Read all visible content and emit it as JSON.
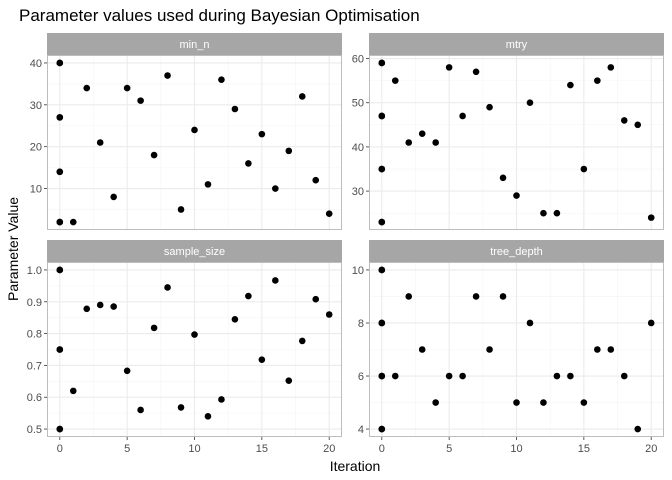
{
  "chart_data": {
    "type": "scatter",
    "title": "Parameter values used during Bayesian Optimisation",
    "xlabel": "Iteration",
    "ylabel": "Parameter Value",
    "grid": true,
    "colors": {
      "point": "#000000",
      "strip": "#a6a6a6",
      "grid_major": "#ebebeb",
      "grid_minor": "#f5f5f5",
      "border": "#bdbdbd"
    },
    "x_ticks": [
      0,
      5,
      10,
      15,
      20
    ],
    "panels": [
      {
        "name": "min_n",
        "xlim": [
          -0.95,
          20.95
        ],
        "ylim": [
          0.1,
          41.9
        ],
        "y_ticks": [
          10,
          20,
          30,
          40
        ],
        "points": [
          [
            0,
            40
          ],
          [
            0,
            40
          ],
          [
            0,
            27
          ],
          [
            0,
            27
          ],
          [
            0,
            14
          ],
          [
            0,
            14
          ],
          [
            0,
            2
          ],
          [
            0,
            2
          ],
          [
            1,
            2
          ],
          [
            2,
            34
          ],
          [
            3,
            21
          ],
          [
            4,
            8
          ],
          [
            5,
            34
          ],
          [
            6,
            31
          ],
          [
            7,
            18
          ],
          [
            8,
            37
          ],
          [
            9,
            5
          ],
          [
            10,
            24
          ],
          [
            11,
            11
          ],
          [
            12,
            36
          ],
          [
            13,
            29
          ],
          [
            14,
            16
          ],
          [
            15,
            23
          ],
          [
            16,
            10
          ],
          [
            17,
            19
          ],
          [
            18,
            32
          ],
          [
            19,
            12
          ],
          [
            20,
            4
          ]
        ]
      },
      {
        "name": "mtry",
        "xlim": [
          -0.95,
          20.95
        ],
        "ylim": [
          21.2,
          60.8
        ],
        "y_ticks": [
          30,
          40,
          50,
          60
        ],
        "points": [
          [
            0,
            59
          ],
          [
            0,
            59
          ],
          [
            0,
            47
          ],
          [
            0,
            47
          ],
          [
            0,
            35
          ],
          [
            0,
            35
          ],
          [
            0,
            23
          ],
          [
            0,
            23
          ],
          [
            1,
            55
          ],
          [
            2,
            41
          ],
          [
            3,
            43
          ],
          [
            4,
            41
          ],
          [
            5,
            58
          ],
          [
            6,
            47
          ],
          [
            7,
            57
          ],
          [
            8,
            49
          ],
          [
            9,
            33
          ],
          [
            10,
            29
          ],
          [
            11,
            50
          ],
          [
            12,
            25
          ],
          [
            13,
            25
          ],
          [
            14,
            54
          ],
          [
            15,
            35
          ],
          [
            16,
            55
          ],
          [
            17,
            58
          ],
          [
            18,
            46
          ],
          [
            19,
            45
          ],
          [
            20,
            24
          ]
        ]
      },
      {
        "name": "sample_size",
        "xlim": [
          -0.95,
          20.95
        ],
        "ylim": [
          0.475,
          1.025
        ],
        "y_ticks": [
          0.5,
          0.6,
          0.7,
          0.8,
          0.9,
          1.0
        ],
        "y_tick_labels": [
          "0.5",
          "0.6",
          "0.7",
          "0.8",
          "0.9",
          "1.0"
        ],
        "points": [
          [
            0,
            1.0
          ],
          [
            0,
            1.0
          ],
          [
            0,
            0.75
          ],
          [
            0,
            0.75
          ],
          [
            0,
            0.5
          ],
          [
            0,
            0.5
          ],
          [
            1,
            0.62
          ],
          [
            2,
            0.878
          ],
          [
            3,
            0.89
          ],
          [
            4,
            0.885
          ],
          [
            5,
            0.683
          ],
          [
            6,
            0.56
          ],
          [
            7,
            0.818
          ],
          [
            8,
            0.945
          ],
          [
            9,
            0.568
          ],
          [
            10,
            0.797
          ],
          [
            11,
            0.54
          ],
          [
            12,
            0.593
          ],
          [
            13,
            0.845
          ],
          [
            14,
            0.918
          ],
          [
            15,
            0.718
          ],
          [
            16,
            0.967
          ],
          [
            17,
            0.652
          ],
          [
            18,
            0.777
          ],
          [
            19,
            0.908
          ],
          [
            20,
            0.86
          ]
        ]
      },
      {
        "name": "tree_depth",
        "xlim": [
          -0.95,
          20.95
        ],
        "ylim": [
          3.7,
          10.3
        ],
        "y_ticks": [
          4,
          6,
          8,
          10
        ],
        "points": [
          [
            0,
            10
          ],
          [
            0,
            10
          ],
          [
            0,
            8
          ],
          [
            0,
            8
          ],
          [
            0,
            6
          ],
          [
            0,
            6
          ],
          [
            0,
            4
          ],
          [
            0,
            4
          ],
          [
            1,
            6
          ],
          [
            2,
            9
          ],
          [
            3,
            7
          ],
          [
            4,
            5
          ],
          [
            5,
            6
          ],
          [
            6,
            6
          ],
          [
            7,
            9
          ],
          [
            8,
            7
          ],
          [
            9,
            9
          ],
          [
            10,
            5
          ],
          [
            11,
            8
          ],
          [
            12,
            5
          ],
          [
            13,
            6
          ],
          [
            14,
            6
          ],
          [
            15,
            5
          ],
          [
            16,
            7
          ],
          [
            17,
            7
          ],
          [
            18,
            6
          ],
          [
            19,
            4
          ],
          [
            20,
            8
          ]
        ]
      }
    ]
  }
}
